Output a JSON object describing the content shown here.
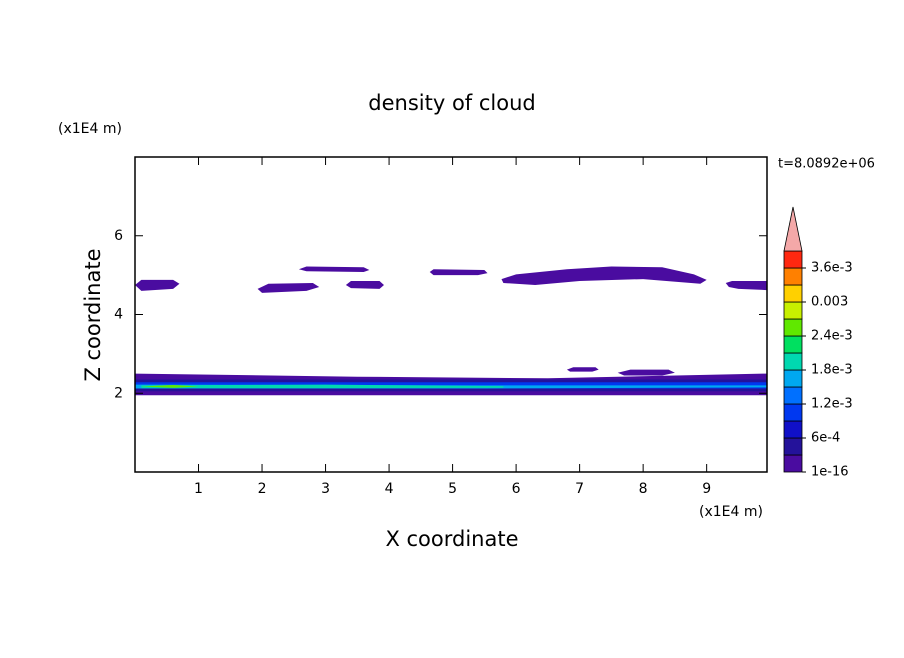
{
  "chart_data": {
    "type": "contour",
    "title": "density of cloud",
    "x_label": "X coordinate",
    "y_label": "Z coordinate",
    "x_unit": "(x1E4 m)",
    "y_unit": "(x1E4 m)",
    "annotation": "t=8.0892e+06",
    "xlim": [
      0,
      9.95
    ],
    "ylim": [
      0,
      8
    ],
    "xticks": [
      1,
      2,
      3,
      4,
      5,
      6,
      7,
      8,
      9
    ],
    "yticks": [
      2,
      4,
      6
    ],
    "levels": [
      1e-16,
      0.0003,
      0.0006,
      0.0009,
      0.0012,
      0.0015,
      0.0018,
      0.0021,
      0.0024,
      0.0027,
      0.003,
      0.0033,
      0.0036
    ],
    "colors": [
      "#4a0ca0",
      "#24129a",
      "#1010c8",
      "#0038f0",
      "#0070ff",
      "#00a8f0",
      "#00d8b0",
      "#00e060",
      "#60e800",
      "#c8f000",
      "#ffd000",
      "#ff8000",
      "#ff2810"
    ],
    "extend_color": "#f4a8a8",
    "clim": [
      0,
      0.0039
    ],
    "colorbar_ticks": [
      {
        "value": 1e-16,
        "label": "1e-16"
      },
      {
        "value": 0.0006,
        "label": "6e-4"
      },
      {
        "value": 0.0012,
        "label": "1.2e-3"
      },
      {
        "value": 0.0018,
        "label": "1.8e-3"
      },
      {
        "value": 0.0024,
        "label": "2.4e-3"
      },
      0.003,
      {
        "value": 0.0036,
        "label": "3.6e-3"
      }
    ],
    "regions": [
      {
        "level": 1e-16,
        "x": [
          0,
          0.1,
          0.6,
          0.7,
          0.6,
          0.1
        ],
        "y": [
          4.75,
          4.88,
          4.88,
          4.78,
          4.65,
          4.6
        ]
      },
      {
        "level": 1e-16,
        "x": [
          1.93,
          2.1,
          2.8,
          2.9,
          2.7,
          2.0
        ],
        "y": [
          4.65,
          4.78,
          4.8,
          4.7,
          4.6,
          4.55
        ]
      },
      {
        "level": 1e-16,
        "x": [
          2.58,
          2.7,
          3.6,
          3.69,
          3.6,
          2.7
        ],
        "y": [
          5.15,
          5.22,
          5.2,
          5.13,
          5.08,
          5.1
        ]
      },
      {
        "level": 1e-16,
        "x": [
          3.32,
          3.4,
          3.85,
          3.92,
          3.85,
          3.4
        ],
        "y": [
          4.75,
          4.85,
          4.85,
          4.75,
          4.65,
          4.67
        ]
      },
      {
        "level": 1e-16,
        "x": [
          4.64,
          4.7,
          5.5,
          5.55,
          5.4,
          4.7
        ],
        "y": [
          5.08,
          5.15,
          5.13,
          5.05,
          5.0,
          5.0
        ]
      },
      {
        "level": 1e-16,
        "x": [
          5.77,
          6.0,
          6.8,
          7.5,
          8.3,
          8.8,
          9.0,
          8.9,
          8.0,
          7.0,
          6.3,
          5.8
        ],
        "y": [
          4.9,
          5.02,
          5.15,
          5.22,
          5.2,
          5.02,
          4.88,
          4.78,
          4.9,
          4.85,
          4.75,
          4.8
        ]
      },
      {
        "level": 1e-16,
        "x": [
          9.3,
          9.4,
          9.95,
          9.95,
          9.5,
          9.35
        ],
        "y": [
          4.8,
          4.85,
          4.85,
          4.62,
          4.65,
          4.7
        ]
      },
      {
        "level": 1e-16,
        "x": [
          6.8,
          6.9,
          7.25,
          7.3,
          7.2,
          6.85
        ],
        "y": [
          2.6,
          2.66,
          2.66,
          2.6,
          2.55,
          2.55
        ]
      },
      {
        "level": 1e-16,
        "x": [
          7.6,
          7.8,
          8.4,
          8.5,
          8.3,
          7.7
        ],
        "y": [
          2.52,
          2.6,
          2.6,
          2.52,
          2.45,
          2.45
        ]
      },
      {
        "level": 1e-16,
        "x": [
          0,
          3.5,
          6.5,
          9.95,
          9.95,
          0
        ],
        "y": [
          2.5,
          2.42,
          2.38,
          2.5,
          1.95,
          1.95
        ]
      },
      {
        "level": 0.0003,
        "x": [
          0,
          9.95,
          9.95,
          0
        ],
        "y": [
          2.35,
          2.35,
          2.05,
          2.05
        ]
      },
      {
        "level": 0.0009,
        "x": [
          0,
          9.95,
          9.95,
          0
        ],
        "y": [
          2.28,
          2.28,
          2.12,
          2.12
        ]
      },
      {
        "level": 0.0015,
        "x": [
          0,
          5.5,
          9.95,
          9.95,
          5.5,
          0
        ],
        "y": [
          2.22,
          2.2,
          2.2,
          2.15,
          2.12,
          2.12
        ]
      },
      {
        "level": 0.0018,
        "x": [
          0.1,
          3,
          5.8,
          5.8,
          3,
          0.1
        ],
        "y": [
          2.2,
          2.22,
          2.18,
          2.14,
          2.13,
          2.13
        ]
      },
      {
        "level": 0.0024,
        "x": [
          0.1,
          0.6,
          1.0,
          0.6
        ],
        "y": [
          2.17,
          2.21,
          2.17,
          2.14
        ]
      }
    ]
  }
}
